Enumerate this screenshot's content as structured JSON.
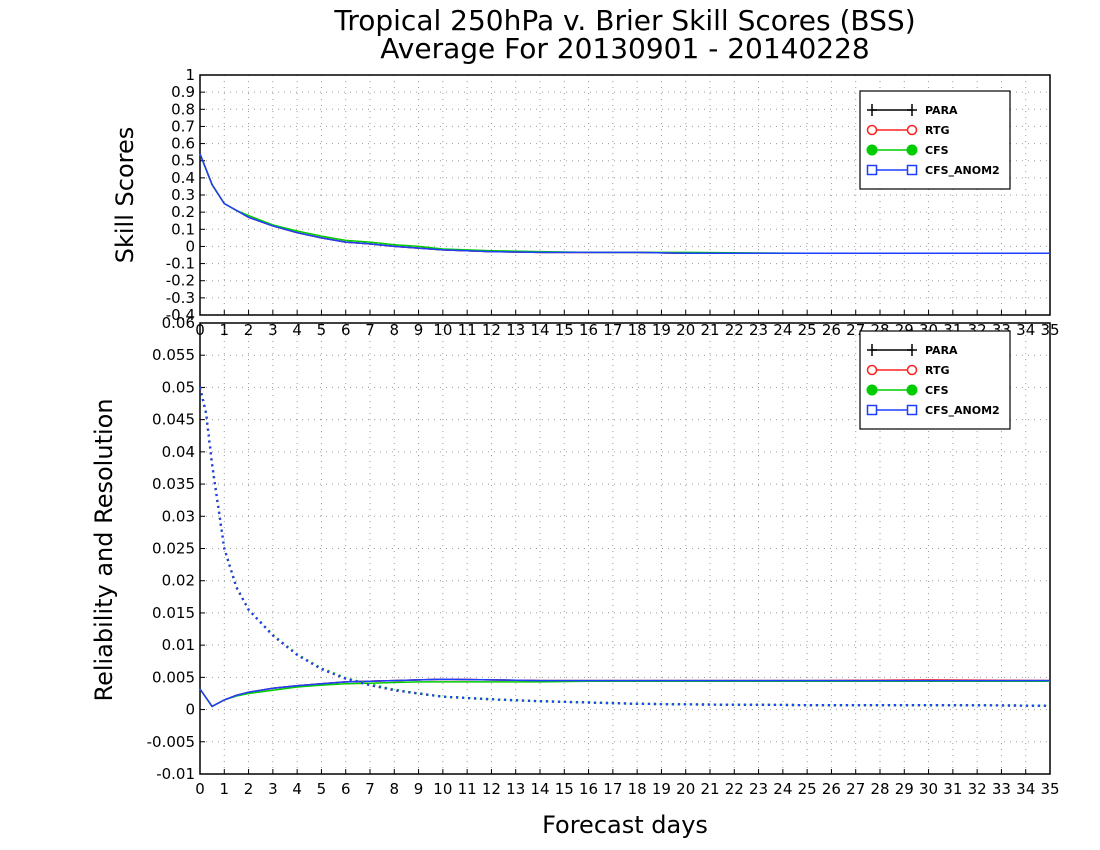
{
  "title": "Tropical 250hPa v. Brier Skill Scores (BSS)",
  "subtitle": "Average For 20130901 - 20140228",
  "chart_data": [
    {
      "type": "line",
      "panel": "top",
      "ylabel": "Skill Scores",
      "ylim": [
        -0.4,
        1
      ],
      "yticks": [
        "1",
        "0.9",
        "0.8",
        "0.7",
        "0.6",
        "0.5",
        "0.4",
        "0.3",
        "0.2",
        "0.1",
        "0",
        "-0.1",
        "-0.2",
        "-0.3",
        "-0.4"
      ],
      "xlim": [
        0,
        35
      ],
      "xticks": [
        "0",
        "1",
        "2",
        "3",
        "4",
        "5",
        "6",
        "7",
        "8",
        "9",
        "10",
        "11",
        "12",
        "13",
        "14",
        "15",
        "16",
        "17",
        "18",
        "19",
        "20",
        "21",
        "22",
        "23",
        "24",
        "25",
        "26",
        "27",
        "28",
        "29",
        "30",
        "31",
        "32",
        "33",
        "34",
        "35"
      ],
      "grid": true,
      "legend_position": "top-right",
      "x": [
        0,
        0.5,
        1,
        1.5,
        2,
        3,
        4,
        5,
        6,
        7,
        8,
        9,
        10,
        11,
        12,
        14,
        16,
        18,
        20,
        25,
        30,
        35
      ],
      "series": [
        {
          "name": "PARA",
          "color": "#000000",
          "marker": "plus",
          "values": [
            0.54,
            0.36,
            0.25,
            0.21,
            0.17,
            0.12,
            0.08,
            0.05,
            0.025,
            0.015,
            0.0,
            -0.01,
            -0.02,
            -0.025,
            -0.03,
            -0.035,
            -0.035,
            -0.035,
            -0.04,
            -0.04,
            -0.04,
            -0.04
          ]
        },
        {
          "name": "RTG",
          "color": "#ff2020",
          "marker": "open-circle",
          "values": [
            0.54,
            0.36,
            0.25,
            0.21,
            0.17,
            0.12,
            0.08,
            0.05,
            0.025,
            0.015,
            0.0,
            -0.01,
            -0.02,
            -0.025,
            -0.03,
            -0.035,
            -0.035,
            -0.035,
            -0.04,
            -0.04,
            -0.04,
            -0.04
          ]
        },
        {
          "name": "CFS",
          "color": "#00cc00",
          "marker": "filled-circle",
          "values": [
            0.54,
            0.36,
            0.25,
            0.21,
            0.18,
            0.125,
            0.09,
            0.06,
            0.035,
            0.025,
            0.01,
            0.0,
            -0.015,
            -0.02,
            -0.025,
            -0.03,
            -0.035,
            -0.035,
            -0.035,
            -0.04,
            -0.04,
            -0.04
          ]
        },
        {
          "name": "CFS_ANOM2",
          "color": "#1f3fff",
          "marker": "open-square",
          "values": [
            0.54,
            0.36,
            0.25,
            0.21,
            0.17,
            0.12,
            0.08,
            0.05,
            0.025,
            0.015,
            0.0,
            -0.01,
            -0.02,
            -0.025,
            -0.03,
            -0.035,
            -0.035,
            -0.035,
            -0.04,
            -0.04,
            -0.04,
            -0.04
          ]
        }
      ]
    },
    {
      "type": "line",
      "panel": "bottom",
      "ylabel": "Reliability and Resolution",
      "xlabel": "Forecast days",
      "ylim": [
        -0.01,
        0.06
      ],
      "yticks": [
        "0.06",
        "0.055",
        "0.05",
        "0.045",
        "0.04",
        "0.035",
        "0.03",
        "0.025",
        "0.02",
        "0.015",
        "0.01",
        "0.005",
        "0",
        "-0.005",
        "-0.01"
      ],
      "xlim": [
        0,
        35
      ],
      "xticks": [
        "0",
        "1",
        "2",
        "3",
        "4",
        "5",
        "6",
        "7",
        "8",
        "9",
        "10",
        "11",
        "12",
        "13",
        "14",
        "15",
        "16",
        "17",
        "18",
        "19",
        "20",
        "21",
        "22",
        "23",
        "24",
        "25",
        "26",
        "27",
        "28",
        "29",
        "30",
        "31",
        "32",
        "33",
        "34",
        "35"
      ],
      "grid": true,
      "legend_position": "top-right",
      "legend": [
        "PARA",
        "RTG",
        "CFS",
        "CFS_ANOM2"
      ],
      "reliability": {
        "x": [
          0,
          0.5,
          1,
          1.5,
          2,
          3,
          4,
          5,
          6,
          7,
          8,
          9,
          10,
          12,
          14,
          16,
          18,
          20,
          25,
          30,
          35
        ],
        "series": [
          {
            "name": "PARA",
            "color": "#000000",
            "values": [
              0.0032,
              0.0005,
              0.0015,
              0.0022,
              0.0027,
              0.0033,
              0.0037,
              0.004,
              0.0043,
              0.0044,
              0.0045,
              0.0046,
              0.0047,
              0.0046,
              0.0045,
              0.0045,
              0.0045,
              0.0045,
              0.0045,
              0.0045,
              0.0045
            ]
          },
          {
            "name": "RTG",
            "color": "#ff2020",
            "values": [
              0.0032,
              0.0005,
              0.0015,
              0.0022,
              0.0027,
              0.0033,
              0.0037,
              0.004,
              0.0043,
              0.0044,
              0.0045,
              0.0046,
              0.0047,
              0.0046,
              0.0045,
              0.0045,
              0.0045,
              0.0045,
              0.0045,
              0.0046,
              0.0045
            ]
          },
          {
            "name": "CFS",
            "color": "#00cc00",
            "values": [
              0.0032,
              0.0005,
              0.0015,
              0.0021,
              0.0025,
              0.003,
              0.0035,
              0.0038,
              0.004,
              0.0041,
              0.0042,
              0.0043,
              0.0043,
              0.0043,
              0.0043,
              0.0044,
              0.0044,
              0.0044,
              0.0044,
              0.0044,
              0.0044
            ]
          },
          {
            "name": "CFS_ANOM2",
            "color": "#1f3fff",
            "values": [
              0.0032,
              0.0005,
              0.0015,
              0.0022,
              0.0027,
              0.0033,
              0.0037,
              0.004,
              0.0043,
              0.0044,
              0.0045,
              0.0046,
              0.0047,
              0.0046,
              0.0045,
              0.0045,
              0.0045,
              0.0045,
              0.0045,
              0.0045,
              0.0045
            ]
          }
        ]
      },
      "resolution": {
        "style": "dotted",
        "x": [
          0,
          0.25,
          0.5,
          1,
          1.5,
          2,
          3,
          4,
          5,
          6,
          7,
          8,
          9,
          10,
          12,
          14,
          16,
          18,
          20,
          25,
          30,
          35
        ],
        "series": [
          {
            "name": "PARA",
            "color": "#000000",
            "values": [
              0.05,
              0.046,
              0.038,
              0.025,
              0.019,
              0.0155,
              0.0115,
              0.0085,
              0.0063,
              0.0048,
              0.0038,
              0.003,
              0.0025,
              0.002,
              0.0016,
              0.0013,
              0.0011,
              0.0009,
              0.0008,
              0.0007,
              0.0007,
              0.0006
            ]
          },
          {
            "name": "RTG",
            "color": "#ff2020",
            "values": [
              0.05,
              0.046,
              0.038,
              0.025,
              0.019,
              0.0155,
              0.0115,
              0.0085,
              0.0063,
              0.0048,
              0.0038,
              0.003,
              0.0025,
              0.002,
              0.0016,
              0.0013,
              0.0011,
              0.0009,
              0.0008,
              0.0007,
              0.0007,
              0.0006
            ]
          },
          {
            "name": "CFS",
            "color": "#00cc00",
            "values": [
              0.05,
              0.046,
              0.038,
              0.025,
              0.019,
              0.0155,
              0.0116,
              0.0086,
              0.0064,
              0.0049,
              0.0039,
              0.0031,
              0.0025,
              0.002,
              0.0016,
              0.0013,
              0.0011,
              0.0009,
              0.0008,
              0.0007,
              0.0007,
              0.0006
            ]
          },
          {
            "name": "CFS_ANOM2",
            "color": "#1f3fff",
            "values": [
              0.05,
              0.046,
              0.038,
              0.025,
              0.019,
              0.0155,
              0.0115,
              0.0085,
              0.0063,
              0.0048,
              0.0038,
              0.003,
              0.0025,
              0.002,
              0.0016,
              0.0013,
              0.0011,
              0.0009,
              0.0008,
              0.0007,
              0.0007,
              0.0006
            ]
          }
        ]
      }
    }
  ]
}
